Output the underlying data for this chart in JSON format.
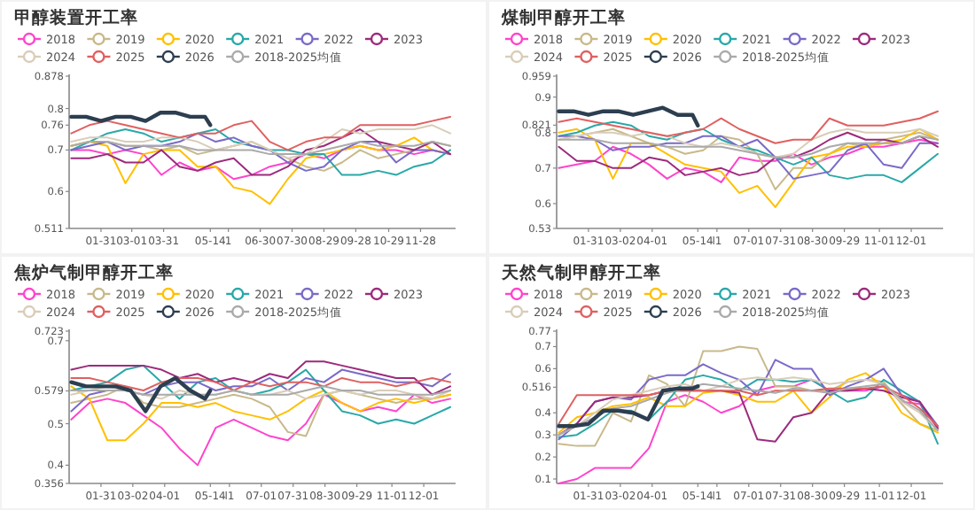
{
  "chart_data": [
    {
      "type": "line",
      "title": "甲醇装置开工率",
      "legend": "top",
      "marker": "none",
      "x": [
        "--01-03",
        "--01-20",
        "--02-06",
        "--02-23",
        "--03-12",
        "--03-29",
        "--04-15",
        "--05-02",
        "--05-19",
        "--06-05",
        "--06-22",
        "--07-09",
        "--07-26",
        "--08-12",
        "--08-29",
        "--09-15",
        "--10-02",
        "--10-19",
        "--11-05",
        "--11-22",
        "--12-09",
        "--12-26"
      ],
      "xlim": [
        "--01-01",
        "--12-31"
      ],
      "xticks": [
        {
          "value": "--01-31",
          "label": "01-31"
        },
        {
          "value": "--03-01",
          "label": "03-01"
        },
        {
          "value": "--03-31",
          "label": "03-31"
        },
        {
          "value": "--05-14",
          "label": "05-14"
        },
        {
          "value": "--05-31",
          "label": "1"
        },
        {
          "value": "--06-30",
          "label": "06-30"
        },
        {
          "value": "--07-30",
          "label": "07-30"
        },
        {
          "value": "--08-29",
          "label": "08-29"
        },
        {
          "value": "--09-28",
          "label": "09-28"
        },
        {
          "value": "--10-29",
          "label": "10-29"
        },
        {
          "value": "--11-28",
          "label": "11-28"
        }
      ],
      "ylim": [
        0.511,
        0.878
      ],
      "yticks": [
        0.511,
        0.6,
        0.7,
        0.76,
        0.8,
        0.878
      ],
      "series": [
        {
          "name": "2018",
          "color": "#ff44cc",
          "values": [
            0.7,
            0.7,
            0.69,
            0.7,
            0.69,
            0.64,
            0.67,
            0.65,
            0.66,
            0.63,
            0.64,
            0.66,
            0.67,
            0.69,
            0.68,
            0.7,
            0.71,
            0.7,
            0.7,
            0.69,
            0.7,
            0.69
          ]
        },
        {
          "name": "2019",
          "color": "#c8b98a",
          "values": [
            0.71,
            0.72,
            0.72,
            0.71,
            0.71,
            0.7,
            0.71,
            0.69,
            0.7,
            0.71,
            0.72,
            0.7,
            0.68,
            0.66,
            0.65,
            0.67,
            0.7,
            0.68,
            0.69,
            0.7,
            0.72,
            0.71
          ]
        },
        {
          "name": "2020",
          "color": "#ffc000",
          "values": [
            0.71,
            0.72,
            0.71,
            0.62,
            0.69,
            0.7,
            0.7,
            0.66,
            0.66,
            0.61,
            0.6,
            0.57,
            0.63,
            0.68,
            0.69,
            0.7,
            0.71,
            0.7,
            0.71,
            0.73,
            0.7,
            0.69
          ]
        },
        {
          "name": "2021",
          "color": "#2aa8a8",
          "values": [
            0.7,
            0.72,
            0.74,
            0.75,
            0.74,
            0.72,
            0.73,
            0.74,
            0.75,
            0.72,
            0.71,
            0.7,
            0.7,
            0.69,
            0.69,
            0.64,
            0.64,
            0.65,
            0.64,
            0.66,
            0.67,
            0.7
          ]
        },
        {
          "name": "2022",
          "color": "#7a6ac8",
          "values": [
            0.7,
            0.71,
            0.72,
            0.7,
            0.71,
            0.71,
            0.72,
            0.74,
            0.72,
            0.73,
            0.71,
            0.7,
            0.67,
            0.65,
            0.66,
            0.7,
            0.72,
            0.72,
            0.67,
            0.7,
            0.7,
            0.69
          ]
        },
        {
          "name": "2023",
          "color": "#9c2b7c",
          "values": [
            0.68,
            0.68,
            0.69,
            0.67,
            0.67,
            0.7,
            0.66,
            0.65,
            0.67,
            0.68,
            0.64,
            0.64,
            0.66,
            0.7,
            0.71,
            0.73,
            0.75,
            0.72,
            0.71,
            0.7,
            0.72,
            0.69
          ]
        },
        {
          "name": "2024",
          "color": "#d9cdb8",
          "values": [
            0.72,
            0.73,
            0.73,
            0.72,
            0.72,
            0.73,
            0.73,
            0.72,
            0.7,
            0.71,
            0.72,
            0.7,
            0.68,
            0.69,
            0.72,
            0.75,
            0.74,
            0.75,
            0.75,
            0.75,
            0.76,
            0.74
          ]
        },
        {
          "name": "2025",
          "color": "#e06060",
          "values": [
            0.74,
            0.76,
            0.77,
            0.76,
            0.75,
            0.74,
            0.73,
            0.74,
            0.74,
            0.76,
            0.77,
            0.72,
            0.7,
            0.72,
            0.73,
            0.73,
            0.76,
            0.76,
            0.76,
            0.76,
            0.77,
            0.78
          ]
        },
        {
          "name": "2026",
          "color": "#2c3e50",
          "x": [
            "--01-03",
            "--01-17",
            "--01-31",
            "--02-14",
            "--02-28",
            "--03-14",
            "--03-28",
            "--04-11",
            "--04-25",
            "--05-09",
            "--05-14"
          ],
          "values": [
            0.78,
            0.78,
            0.77,
            0.78,
            0.78,
            0.77,
            0.79,
            0.79,
            0.78,
            0.78,
            0.76
          ]
        },
        {
          "name": "2018-2025均值",
          "color": "#aaaaaa",
          "values": [
            0.71,
            0.72,
            0.72,
            0.71,
            0.71,
            0.71,
            0.71,
            0.7,
            0.7,
            0.7,
            0.7,
            0.69,
            0.69,
            0.69,
            0.7,
            0.71,
            0.72,
            0.71,
            0.71,
            0.71,
            0.72,
            0.71
          ]
        }
      ]
    },
    {
      "type": "line",
      "title": "煤制甲醇开工率",
      "legend": "top",
      "marker": "none",
      "x": [
        "--01-03",
        "--01-20",
        "--02-06",
        "--02-23",
        "--03-12",
        "--03-29",
        "--04-15",
        "--05-02",
        "--05-19",
        "--06-05",
        "--06-22",
        "--07-09",
        "--07-26",
        "--08-12",
        "--08-29",
        "--09-15",
        "--10-02",
        "--10-19",
        "--11-05",
        "--11-22",
        "--12-09",
        "--12-26"
      ],
      "xlim": [
        "--01-01",
        "--12-31"
      ],
      "xticks": [
        {
          "value": "--01-31",
          "label": "01-31"
        },
        {
          "value": "--03-02",
          "label": "03-02"
        },
        {
          "value": "--04-01",
          "label": "04-01"
        },
        {
          "value": "--05-14",
          "label": "05-14"
        },
        {
          "value": "--06-01",
          "label": "l1"
        },
        {
          "value": "--07-01",
          "label": "07-01"
        },
        {
          "value": "--07-31",
          "label": "07-31"
        },
        {
          "value": "--08-30",
          "label": "08-30"
        },
        {
          "value": "--09-29",
          "label": "09-29"
        },
        {
          "value": "--11-01",
          "label": "11-01"
        },
        {
          "value": "--12-01",
          "label": "12-01"
        }
      ],
      "ylim": [
        0.53,
        0.959
      ],
      "yticks": [
        0.53,
        0.6,
        0.7,
        0.8,
        0.821,
        0.9,
        0.959
      ],
      "series": [
        {
          "name": "2018",
          "color": "#ff44cc",
          "values": [
            0.7,
            0.71,
            0.72,
            0.76,
            0.74,
            0.71,
            0.67,
            0.7,
            0.69,
            0.66,
            0.73,
            0.72,
            0.72,
            0.74,
            0.71,
            0.73,
            0.74,
            0.76,
            0.76,
            0.77,
            0.78,
            0.77
          ]
        },
        {
          "name": "2019",
          "color": "#c8b98a",
          "values": [
            0.78,
            0.79,
            0.8,
            0.81,
            0.79,
            0.77,
            0.76,
            0.74,
            0.75,
            0.79,
            0.78,
            0.74,
            0.64,
            0.7,
            0.7,
            0.74,
            0.77,
            0.76,
            0.78,
            0.79,
            0.8,
            0.78
          ]
        },
        {
          "name": "2020",
          "color": "#ffc000",
          "values": [
            0.8,
            0.81,
            0.78,
            0.67,
            0.77,
            0.77,
            0.74,
            0.71,
            0.7,
            0.69,
            0.63,
            0.65,
            0.59,
            0.66,
            0.73,
            0.74,
            0.76,
            0.76,
            0.77,
            0.78,
            0.81,
            0.78
          ]
        },
        {
          "name": "2021",
          "color": "#2aa8a8",
          "values": [
            0.79,
            0.8,
            0.82,
            0.83,
            0.82,
            0.79,
            0.78,
            0.8,
            0.81,
            0.78,
            0.76,
            0.75,
            0.73,
            0.71,
            0.73,
            0.68,
            0.67,
            0.68,
            0.68,
            0.66,
            0.7,
            0.74
          ]
        },
        {
          "name": "2022",
          "color": "#7a6ac8",
          "values": [
            0.79,
            0.79,
            0.78,
            0.75,
            0.76,
            0.76,
            0.77,
            0.77,
            0.79,
            0.79,
            0.76,
            0.78,
            0.73,
            0.67,
            0.68,
            0.69,
            0.75,
            0.77,
            0.71,
            0.7,
            0.77,
            0.77
          ]
        },
        {
          "name": "2023",
          "color": "#9c2b7c",
          "values": [
            0.76,
            0.72,
            0.72,
            0.7,
            0.7,
            0.73,
            0.72,
            0.68,
            0.69,
            0.7,
            0.68,
            0.69,
            0.73,
            0.73,
            0.75,
            0.78,
            0.8,
            0.78,
            0.78,
            0.77,
            0.79,
            0.76
          ]
        },
        {
          "name": "2024",
          "color": "#d9cdb8",
          "values": [
            0.78,
            0.79,
            0.8,
            0.8,
            0.79,
            0.8,
            0.79,
            0.77,
            0.76,
            0.77,
            0.76,
            0.74,
            0.73,
            0.74,
            0.78,
            0.8,
            0.81,
            0.8,
            0.8,
            0.8,
            0.81,
            0.79
          ]
        },
        {
          "name": "2025",
          "color": "#e06060",
          "values": [
            0.83,
            0.84,
            0.83,
            0.82,
            0.81,
            0.8,
            0.79,
            0.8,
            0.81,
            0.84,
            0.81,
            0.79,
            0.77,
            0.78,
            0.78,
            0.84,
            0.82,
            0.82,
            0.82,
            0.83,
            0.84,
            0.86
          ]
        },
        {
          "name": "2026",
          "color": "#2c3e50",
          "x": [
            "--01-03",
            "--01-17",
            "--01-31",
            "--02-14",
            "--02-28",
            "--03-14",
            "--03-28",
            "--04-11",
            "--04-25",
            "--05-09",
            "--05-14"
          ],
          "values": [
            0.86,
            0.86,
            0.85,
            0.86,
            0.86,
            0.85,
            0.86,
            0.87,
            0.85,
            0.85,
            0.82
          ]
        },
        {
          "name": "2018-2025均值",
          "color": "#aaaaaa",
          "values": [
            0.78,
            0.78,
            0.78,
            0.77,
            0.77,
            0.77,
            0.76,
            0.76,
            0.76,
            0.76,
            0.75,
            0.74,
            0.73,
            0.73,
            0.74,
            0.76,
            0.77,
            0.77,
            0.77,
            0.77,
            0.79,
            0.78
          ]
        }
      ]
    },
    {
      "type": "line",
      "title": "焦炉气制甲醇开工率",
      "legend": "top",
      "marker": "none",
      "x": [
        "--01-03",
        "--01-20",
        "--02-06",
        "--02-23",
        "--03-12",
        "--03-29",
        "--04-15",
        "--05-02",
        "--05-19",
        "--06-05",
        "--06-22",
        "--07-09",
        "--07-26",
        "--08-12",
        "--08-29",
        "--09-15",
        "--10-02",
        "--10-19",
        "--11-05",
        "--11-22",
        "--12-09",
        "--12-26"
      ],
      "xlim": [
        "--01-01",
        "--12-31"
      ],
      "xticks": [
        {
          "value": "--01-31",
          "label": "01-31"
        },
        {
          "value": "--03-02",
          "label": "03-02"
        },
        {
          "value": "--04-01",
          "label": "04-01"
        },
        {
          "value": "--05-14",
          "label": "05-14"
        },
        {
          "value": "--06-01",
          "label": "l1"
        },
        {
          "value": "--07-01",
          "label": "07-01"
        },
        {
          "value": "--07-31",
          "label": "07-31"
        },
        {
          "value": "--08-30",
          "label": "08-30"
        },
        {
          "value": "--09-29",
          "label": "09-29"
        },
        {
          "value": "--11-01",
          "label": "11-01"
        },
        {
          "value": "--12-01",
          "label": "12-01"
        }
      ],
      "ylim": [
        0.356,
        0.723
      ],
      "yticks": [
        0.356,
        0.4,
        0.5,
        0.579,
        0.7,
        0.723
      ],
      "series": [
        {
          "name": "2018",
          "color": "#ff44cc",
          "values": [
            0.51,
            0.55,
            0.56,
            0.55,
            0.52,
            0.49,
            0.44,
            0.4,
            0.49,
            0.51,
            0.49,
            0.47,
            0.46,
            0.5,
            0.57,
            0.55,
            0.53,
            0.54,
            0.53,
            0.57,
            0.55,
            0.56
          ]
        },
        {
          "name": "2019",
          "color": "#c8b98a",
          "values": [
            0.55,
            0.56,
            0.57,
            0.59,
            0.55,
            0.54,
            0.54,
            0.55,
            0.56,
            0.57,
            0.56,
            0.54,
            0.48,
            0.47,
            0.57,
            0.58,
            0.57,
            0.56,
            0.55,
            0.56,
            0.56,
            0.57
          ]
        },
        {
          "name": "2020",
          "color": "#ffc000",
          "values": [
            0.59,
            0.56,
            0.46,
            0.46,
            0.5,
            0.55,
            0.55,
            0.54,
            0.55,
            0.53,
            0.52,
            0.51,
            0.53,
            0.56,
            0.58,
            0.55,
            0.53,
            0.55,
            0.56,
            0.55,
            0.56,
            0.57
          ]
        },
        {
          "name": "2021",
          "color": "#2aa8a8",
          "values": [
            0.58,
            0.59,
            0.6,
            0.63,
            0.64,
            0.6,
            0.56,
            0.6,
            0.61,
            0.58,
            0.57,
            0.58,
            0.6,
            0.63,
            0.58,
            0.53,
            0.52,
            0.5,
            0.51,
            0.5,
            0.52,
            0.54
          ]
        },
        {
          "name": "2022",
          "color": "#7a6ac8",
          "values": [
            0.53,
            0.57,
            0.58,
            0.58,
            0.57,
            0.59,
            0.6,
            0.6,
            0.58,
            0.59,
            0.59,
            0.61,
            0.58,
            0.61,
            0.6,
            0.63,
            0.62,
            0.61,
            0.6,
            0.6,
            0.59,
            0.62
          ]
        },
        {
          "name": "2023",
          "color": "#9c2b7c",
          "values": [
            0.63,
            0.64,
            0.64,
            0.64,
            0.64,
            0.63,
            0.61,
            0.62,
            0.6,
            0.61,
            0.6,
            0.62,
            0.61,
            0.65,
            0.65,
            0.64,
            0.63,
            0.62,
            0.61,
            0.61,
            0.57,
            0.59
          ]
        },
        {
          "name": "2024",
          "color": "#d9cdb8",
          "values": [
            0.57,
            0.58,
            0.59,
            0.58,
            0.57,
            0.56,
            0.58,
            0.57,
            0.57,
            0.58,
            0.57,
            0.57,
            0.58,
            0.56,
            0.57,
            0.58,
            0.57,
            0.58,
            0.58,
            0.57,
            0.56,
            0.58
          ]
        },
        {
          "name": "2025",
          "color": "#e06060",
          "values": [
            0.61,
            0.61,
            0.6,
            0.59,
            0.58,
            0.6,
            0.61,
            0.61,
            0.6,
            0.58,
            0.6,
            0.59,
            0.6,
            0.6,
            0.59,
            0.61,
            0.6,
            0.6,
            0.59,
            0.6,
            0.61,
            0.6
          ]
        },
        {
          "name": "2026",
          "color": "#2c3e50",
          "x": [
            "--01-03",
            "--01-17",
            "--01-31",
            "--02-14",
            "--02-28",
            "--03-14",
            "--03-28",
            "--04-11",
            "--04-25",
            "--05-09",
            "--05-14"
          ],
          "values": [
            0.6,
            0.59,
            0.59,
            0.59,
            0.58,
            0.53,
            0.59,
            0.61,
            0.58,
            0.56,
            0.58
          ]
        },
        {
          "name": "2018-2025均值",
          "color": "#aaaaaa",
          "values": [
            0.58,
            0.58,
            0.58,
            0.58,
            0.57,
            0.57,
            0.57,
            0.57,
            0.57,
            0.58,
            0.57,
            0.57,
            0.57,
            0.58,
            0.59,
            0.58,
            0.58,
            0.57,
            0.57,
            0.57,
            0.57,
            0.58
          ]
        }
      ]
    },
    {
      "type": "line",
      "title": "天然气制甲醇开工率",
      "legend": "top",
      "marker": "none",
      "x": [
        "--01-03",
        "--01-20",
        "--02-06",
        "--02-23",
        "--03-12",
        "--03-29",
        "--04-15",
        "--05-02",
        "--05-19",
        "--06-05",
        "--06-22",
        "--07-09",
        "--07-26",
        "--08-12",
        "--08-29",
        "--09-15",
        "--10-02",
        "--10-19",
        "--11-05",
        "--11-22",
        "--12-09",
        "--12-26"
      ],
      "xlim": [
        "--01-01",
        "--12-31"
      ],
      "xticks": [
        {
          "value": "--01-31",
          "label": "01-31"
        },
        {
          "value": "--03-02",
          "label": "03-02"
        },
        {
          "value": "--04-01",
          "label": "04-01"
        },
        {
          "value": "--05-14",
          "label": "05-14"
        },
        {
          "value": "--06-01",
          "label": "l1"
        },
        {
          "value": "--07-01",
          "label": "07-01"
        },
        {
          "value": "--07-31",
          "label": "07-31"
        },
        {
          "value": "--08-30",
          "label": "08-30"
        },
        {
          "value": "--09-29",
          "label": "09-29"
        },
        {
          "value": "--11-01",
          "label": "11-01"
        },
        {
          "value": "--12-01",
          "label": "12-01"
        }
      ],
      "ylim": [
        0.08,
        0.77
      ],
      "yticks": [
        0.1,
        0.2,
        0.3,
        0.4,
        0.516,
        0.6,
        0.7,
        0.77
      ],
      "series": [
        {
          "name": "2018",
          "color": "#ff44cc",
          "values": [
            0.08,
            0.1,
            0.15,
            0.15,
            0.15,
            0.24,
            0.45,
            0.48,
            0.45,
            0.4,
            0.43,
            0.5,
            0.52,
            0.52,
            0.55,
            0.5,
            0.5,
            0.5,
            0.52,
            0.45,
            0.44,
            0.33
          ]
        },
        {
          "name": "2019",
          "color": "#c8b98a",
          "values": [
            0.26,
            0.25,
            0.25,
            0.4,
            0.36,
            0.57,
            0.53,
            0.43,
            0.68,
            0.68,
            0.7,
            0.69,
            0.52,
            0.52,
            0.5,
            0.5,
            0.54,
            0.55,
            0.54,
            0.44,
            0.35,
            0.32
          ]
        },
        {
          "name": "2020",
          "color": "#ffc000",
          "values": [
            0.31,
            0.38,
            0.4,
            0.43,
            0.44,
            0.47,
            0.43,
            0.43,
            0.49,
            0.5,
            0.48,
            0.45,
            0.45,
            0.5,
            0.4,
            0.47,
            0.55,
            0.58,
            0.52,
            0.4,
            0.35,
            0.31
          ]
        },
        {
          "name": "2021",
          "color": "#2aa8a8",
          "values": [
            0.29,
            0.3,
            0.35,
            0.41,
            0.41,
            0.37,
            0.45,
            0.55,
            0.57,
            0.55,
            0.5,
            0.55,
            0.55,
            0.54,
            0.55,
            0.5,
            0.45,
            0.47,
            0.55,
            0.5,
            0.45,
            0.26
          ]
        },
        {
          "name": "2022",
          "color": "#7a6ac8",
          "values": [
            0.28,
            0.35,
            0.45,
            0.47,
            0.46,
            0.55,
            0.57,
            0.57,
            0.62,
            0.58,
            0.55,
            0.48,
            0.64,
            0.6,
            0.6,
            0.48,
            0.52,
            0.55,
            0.6,
            0.48,
            0.45,
            0.34
          ]
        },
        {
          "name": "2023",
          "color": "#9c2b7c",
          "values": [
            0.3,
            0.35,
            0.45,
            0.47,
            0.47,
            0.48,
            0.5,
            0.5,
            0.5,
            0.5,
            0.49,
            0.28,
            0.27,
            0.38,
            0.4,
            0.5,
            0.5,
            0.51,
            0.5,
            0.47,
            0.45,
            0.33
          ]
        },
        {
          "name": "2024",
          "color": "#d9cdb8",
          "values": [
            0.3,
            0.34,
            0.4,
            0.46,
            0.48,
            0.5,
            0.52,
            0.53,
            0.5,
            0.52,
            0.55,
            0.56,
            0.55,
            0.56,
            0.55,
            0.53,
            0.54,
            0.55,
            0.53,
            0.45,
            0.4,
            0.32
          ]
        },
        {
          "name": "2025",
          "color": "#e06060",
          "values": [
            0.35,
            0.48,
            0.48,
            0.48,
            0.48,
            0.48,
            0.5,
            0.5,
            0.5,
            0.5,
            0.5,
            0.48,
            0.5,
            0.5,
            0.5,
            0.51,
            0.51,
            0.51,
            0.52,
            0.48,
            0.42,
            0.34
          ]
        },
        {
          "name": "2026",
          "color": "#2c3e50",
          "x": [
            "--01-03",
            "--01-17",
            "--01-31",
            "--02-14",
            "--02-28",
            "--03-14",
            "--03-28",
            "--04-11",
            "--04-25",
            "--05-09",
            "--05-14"
          ],
          "values": [
            0.34,
            0.34,
            0.35,
            0.41,
            0.41,
            0.4,
            0.37,
            0.5,
            0.51,
            0.51,
            0.52
          ]
        },
        {
          "name": "2018-2025均值",
          "color": "#aaaaaa",
          "values": [
            0.3,
            0.34,
            0.38,
            0.42,
            0.43,
            0.46,
            0.49,
            0.51,
            0.53,
            0.52,
            0.51,
            0.5,
            0.49,
            0.51,
            0.5,
            0.49,
            0.51,
            0.52,
            0.53,
            0.46,
            0.41,
            0.32
          ]
        }
      ]
    }
  ]
}
